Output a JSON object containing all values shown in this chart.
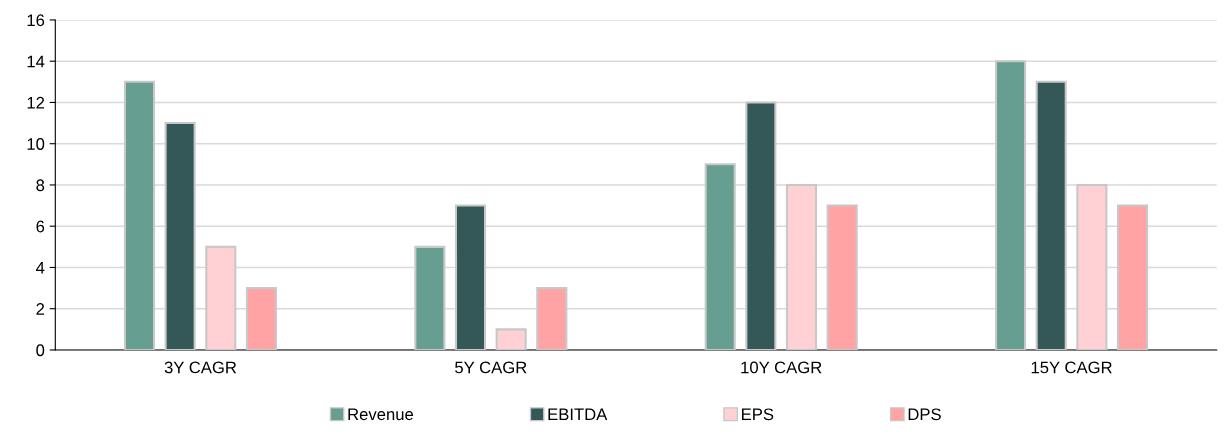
{
  "chart_data": {
    "type": "bar",
    "categories": [
      "3Y CAGR",
      "5Y CAGR",
      "10Y CAGR",
      "15Y CAGR"
    ],
    "series": [
      {
        "name": "Revenue",
        "color": "#669e91",
        "values": [
          13,
          5,
          9,
          14
        ]
      },
      {
        "name": "EBITDA",
        "color": "#335857",
        "values": [
          11,
          7,
          12,
          13
        ]
      },
      {
        "name": "EPS",
        "color": "#ffd0d4",
        "values": [
          5,
          1,
          8,
          8
        ]
      },
      {
        "name": "DPS",
        "color": "#ffa3a5",
        "values": [
          3,
          3,
          7,
          7
        ]
      }
    ],
    "ylim": [
      0,
      16
    ],
    "yticks": [
      0,
      2,
      4,
      6,
      8,
      10,
      12,
      14,
      16
    ],
    "grid": "y",
    "legend": "bottom"
  }
}
